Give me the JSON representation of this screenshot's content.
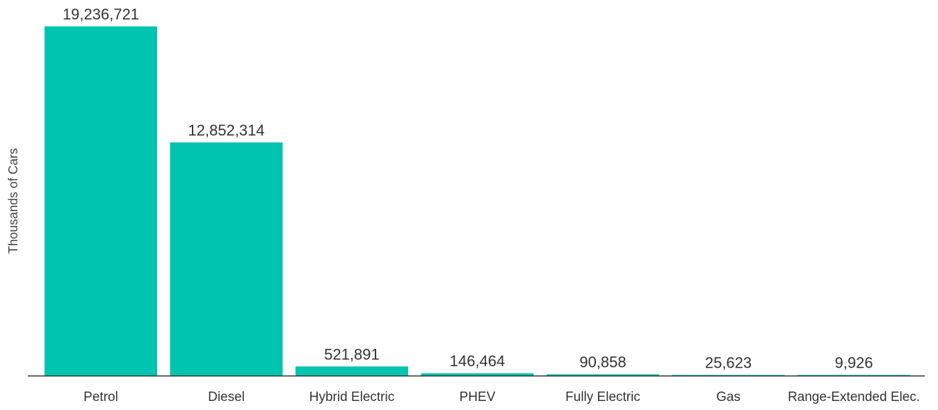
{
  "chart_data": {
    "type": "bar",
    "title": "",
    "xlabel": "",
    "ylabel": "Thousands of Cars",
    "categories": [
      "Petrol",
      "Diesel",
      "Hybrid Electric",
      "PHEV",
      "Fully Electric",
      "Gas",
      "Range-Extended Elec."
    ],
    "values": [
      19236721,
      12852314,
      521891,
      146464,
      90858,
      25623,
      9926
    ],
    "value_labels": [
      "19,236,721",
      "12,852,314",
      "521,891",
      "146,464",
      "90,858",
      "25,623",
      "9,926"
    ],
    "ylim": [
      0,
      19236721
    ],
    "grid": false,
    "legend": "none",
    "colors": {
      "bar": "#00c4b0",
      "baseline": "#333333",
      "text": "#333333"
    }
  }
}
